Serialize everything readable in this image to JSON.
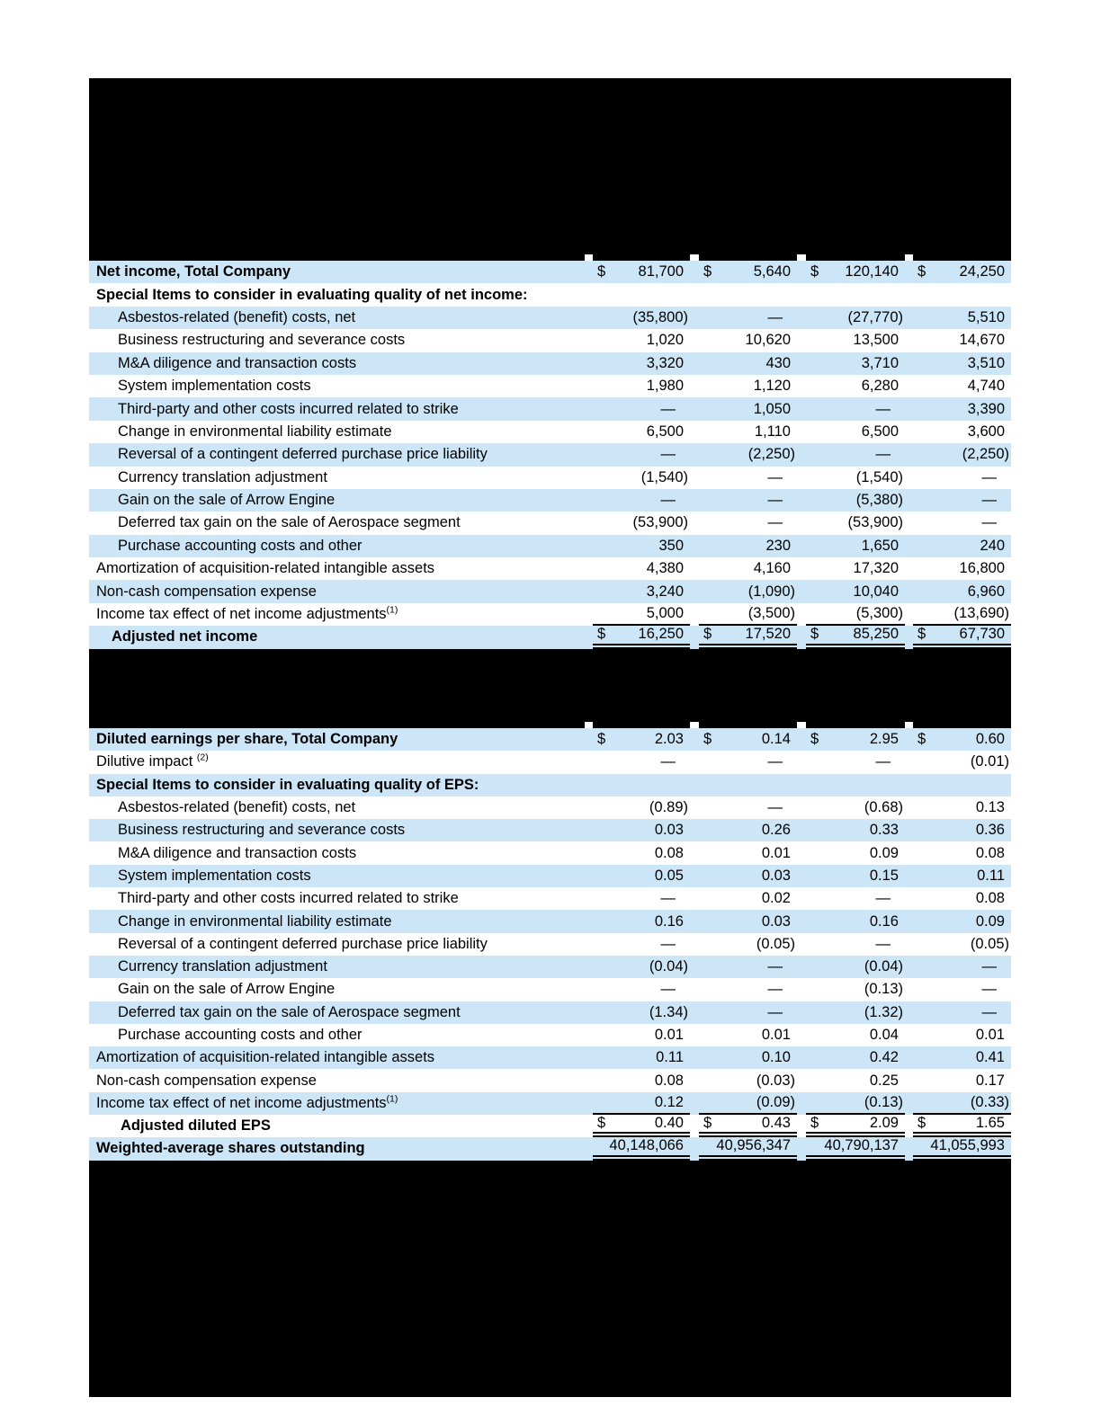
{
  "colors": {
    "row_highlight": "#cce6f8",
    "redaction": "#000000",
    "text": "#000000"
  },
  "redactions": {
    "top": "redacted-block",
    "middle": "redacted-block",
    "bottom": "redacted-block"
  },
  "net_income_table": {
    "rows": [
      {
        "label": "Net income, Total Company",
        "bold": true,
        "indent": 0,
        "dollar": true,
        "shade": "blue",
        "values": [
          "81,700",
          "5,640",
          "120,140",
          "24,250"
        ]
      },
      {
        "label": "Special Items to consider in evaluating quality of net income:",
        "bold": true,
        "indent": 0,
        "shade": "white",
        "values": [
          "",
          "",
          "",
          ""
        ]
      },
      {
        "label": "Asbestos-related (benefit) costs, net",
        "indent": 1,
        "shade": "blue",
        "values": [
          "(35,800)",
          "—",
          "(27,770)",
          "5,510"
        ]
      },
      {
        "label": "Business restructuring and severance costs",
        "indent": 1,
        "shade": "white",
        "values": [
          "1,020",
          "10,620",
          "13,500",
          "14,670"
        ]
      },
      {
        "label": "M&A diligence and transaction costs",
        "indent": 1,
        "shade": "blue",
        "values": [
          "3,320",
          "430",
          "3,710",
          "3,510"
        ]
      },
      {
        "label": "System implementation costs",
        "indent": 1,
        "shade": "white",
        "values": [
          "1,980",
          "1,120",
          "6,280",
          "4,740"
        ]
      },
      {
        "label": "Third-party and other costs incurred related to strike",
        "indent": 1,
        "shade": "blue",
        "values": [
          "—",
          "1,050",
          "—",
          "3,390"
        ]
      },
      {
        "label": "Change in environmental liability estimate",
        "indent": 1,
        "shade": "white",
        "values": [
          "6,500",
          "1,110",
          "6,500",
          "3,600"
        ]
      },
      {
        "label": "Reversal of a contingent deferred purchase price liability",
        "indent": 1,
        "shade": "blue",
        "values": [
          "—",
          "(2,250)",
          "—",
          "(2,250)"
        ]
      },
      {
        "label": "Currency translation adjustment",
        "indent": 1,
        "shade": "white",
        "values": [
          "(1,540)",
          "—",
          "(1,540)",
          "—"
        ]
      },
      {
        "label": "Gain on the sale of Arrow Engine",
        "indent": 1,
        "shade": "blue",
        "values": [
          "—",
          "—",
          "(5,380)",
          "—"
        ]
      },
      {
        "label": "Deferred tax gain on the sale of Aerospace segment",
        "indent": 1,
        "shade": "white",
        "values": [
          "(53,900)",
          "—",
          "(53,900)",
          "—"
        ]
      },
      {
        "label": "Purchase accounting costs and other",
        "indent": 1,
        "shade": "blue",
        "values": [
          "350",
          "230",
          "1,650",
          "240"
        ]
      },
      {
        "label": "Amortization of acquisition-related intangible assets",
        "indent": 0,
        "shade": "white",
        "values": [
          "4,380",
          "4,160",
          "17,320",
          "16,800"
        ]
      },
      {
        "label": "Non-cash compensation expense",
        "indent": 0,
        "shade": "blue",
        "values": [
          "3,240",
          "(1,090)",
          "10,040",
          "6,960"
        ]
      },
      {
        "label": "Income tax effect of net income adjustments",
        "sup": "(1)",
        "indent": 0,
        "shade": "white",
        "underline": "single",
        "values": [
          "5,000",
          "(3,500)",
          "(5,300)",
          "(13,690)"
        ]
      },
      {
        "label": "Adjusted net income",
        "bold": true,
        "indent": 2,
        "dollar": true,
        "shade": "blue",
        "underline": "double",
        "values": [
          "16,250",
          "17,520",
          "85,250",
          "67,730"
        ]
      }
    ]
  },
  "eps_table": {
    "rows": [
      {
        "label": "Diluted earnings per share, Total Company",
        "bold": true,
        "indent": 0,
        "dollar": true,
        "shade": "blue",
        "values": [
          "2.03",
          "0.14",
          "2.95",
          "0.60"
        ]
      },
      {
        "label": "Dilutive impact ",
        "sup": "(2)",
        "indent": 0,
        "shade": "white",
        "values": [
          "—",
          "—",
          "—",
          "(0.01)"
        ]
      },
      {
        "label": "Special Items to consider in evaluating quality of EPS:",
        "bold": true,
        "indent": 0,
        "shade": "blue",
        "values": [
          "",
          "",
          "",
          ""
        ]
      },
      {
        "label": "Asbestos-related (benefit) costs, net",
        "indent": 1,
        "shade": "white",
        "values": [
          "(0.89)",
          "—",
          "(0.68)",
          "0.13"
        ]
      },
      {
        "label": "Business restructuring and severance costs",
        "indent": 1,
        "shade": "blue",
        "values": [
          "0.03",
          "0.26",
          "0.33",
          "0.36"
        ]
      },
      {
        "label": "M&A diligence and transaction costs",
        "indent": 1,
        "shade": "white",
        "values": [
          "0.08",
          "0.01",
          "0.09",
          "0.08"
        ]
      },
      {
        "label": "System implementation costs",
        "indent": 1,
        "shade": "blue",
        "values": [
          "0.05",
          "0.03",
          "0.15",
          "0.11"
        ]
      },
      {
        "label": "Third-party and other costs incurred related to strike",
        "indent": 1,
        "shade": "white",
        "values": [
          "—",
          "0.02",
          "—",
          "0.08"
        ]
      },
      {
        "label": "Change in environmental liability estimate",
        "indent": 1,
        "shade": "blue",
        "values": [
          "0.16",
          "0.03",
          "0.16",
          "0.09"
        ]
      },
      {
        "label": "Reversal of a contingent deferred purchase price liability",
        "indent": 1,
        "shade": "white",
        "values": [
          "—",
          "(0.05)",
          "—",
          "(0.05)"
        ]
      },
      {
        "label": "Currency translation adjustment",
        "indent": 1,
        "shade": "blue",
        "values": [
          "(0.04)",
          "—",
          "(0.04)",
          "—"
        ]
      },
      {
        "label": "Gain on the sale of Arrow Engine",
        "indent": 1,
        "shade": "white",
        "values": [
          "—",
          "—",
          "(0.13)",
          "—"
        ]
      },
      {
        "label": "Deferred tax gain on the sale of Aerospace segment",
        "indent": 1,
        "shade": "blue",
        "values": [
          "(1.34)",
          "—",
          "(1.32)",
          "—"
        ]
      },
      {
        "label": "Purchase accounting costs and other",
        "indent": 1,
        "shade": "white",
        "values": [
          "0.01",
          "0.01",
          "0.04",
          "0.01"
        ]
      },
      {
        "label": "Amortization of acquisition-related intangible assets",
        "indent": 0,
        "shade": "blue",
        "values": [
          "0.11",
          "0.10",
          "0.42",
          "0.41"
        ]
      },
      {
        "label": "Non-cash compensation expense",
        "indent": 0,
        "shade": "white",
        "values": [
          "0.08",
          "(0.03)",
          "0.25",
          "0.17"
        ]
      },
      {
        "label": "Income tax effect of net income adjustments",
        "sup": "(1)",
        "indent": 0,
        "shade": "blue",
        "underline": "single",
        "values": [
          "0.12",
          "(0.09)",
          "(0.13)",
          "(0.33)"
        ]
      },
      {
        "label": "Adjusted diluted EPS",
        "bold": true,
        "indent": 3,
        "dollar": true,
        "shade": "white",
        "underline": "double",
        "values": [
          "0.40",
          "0.43",
          "2.09",
          "1.65"
        ]
      },
      {
        "label": "Weighted-average shares outstanding",
        "bold": true,
        "indent": 0,
        "shade": "blue",
        "underline": "double",
        "values": [
          "40,148,066",
          "40,956,347",
          "40,790,137",
          "41,055,993"
        ]
      }
    ]
  }
}
